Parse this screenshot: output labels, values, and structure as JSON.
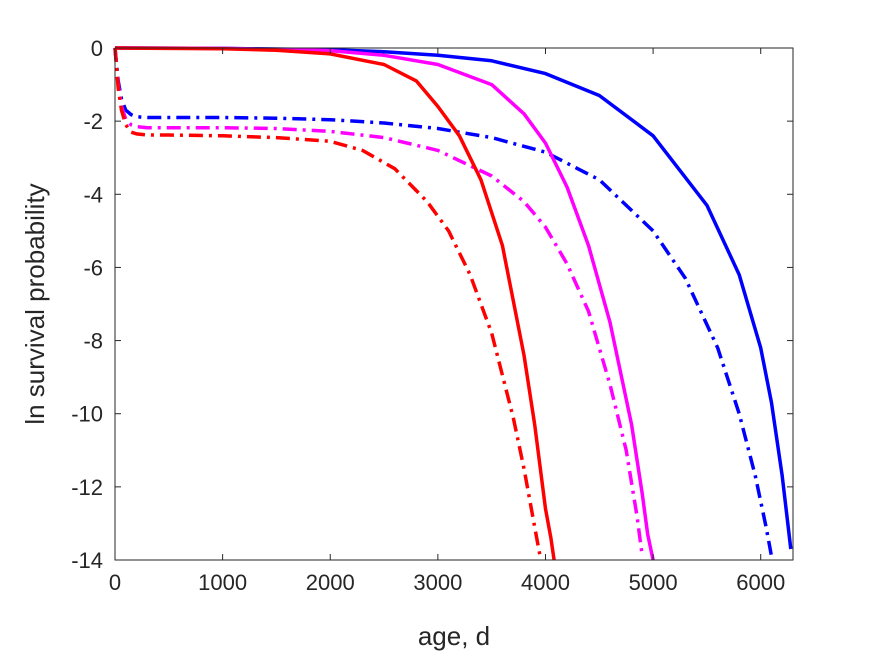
{
  "chart_data": {
    "type": "line",
    "title": "",
    "xlabel": "age, d",
    "ylabel": "ln survival probability",
    "xlim": [
      0,
      6300
    ],
    "ylim": [
      -14,
      0
    ],
    "xticks": [
      0,
      1000,
      2000,
      3000,
      4000,
      5000,
      6000
    ],
    "yticks": [
      0,
      -2,
      -4,
      -6,
      -8,
      -10,
      -12,
      -14
    ],
    "xtick_labels": [
      "0",
      "1000",
      "2000",
      "3000",
      "4000",
      "5000",
      "6000"
    ],
    "ytick_labels": [
      "0",
      "-2",
      "-4",
      "-6",
      "-8",
      "-10",
      "-12",
      "-14"
    ],
    "grid": false,
    "legend": "none",
    "series": [
      {
        "color": "#0000ff",
        "style": "solid",
        "x": [
          0,
          1000,
          2000,
          2500,
          3000,
          3500,
          4000,
          4500,
          5000,
          5500,
          5800,
          6000,
          6100,
          6200,
          6280
        ],
        "y": [
          0,
          -0.01,
          -0.05,
          -0.1,
          -0.2,
          -0.35,
          -0.7,
          -1.3,
          -2.4,
          -4.3,
          -6.2,
          -8.2,
          -9.7,
          -11.7,
          -13.7
        ]
      },
      {
        "color": "#0000ff",
        "style": "dash-dot",
        "x": [
          0,
          30,
          60,
          100,
          150,
          200,
          300,
          500,
          1000,
          1500,
          2000,
          2500,
          3000,
          3500,
          4000,
          4500,
          5000,
          5300,
          5600,
          5800,
          5950,
          6050,
          6100
        ],
        "y": [
          0,
          -0.9,
          -1.4,
          -1.7,
          -1.82,
          -1.88,
          -1.9,
          -1.9,
          -1.9,
          -1.92,
          -1.96,
          -2.05,
          -2.2,
          -2.45,
          -2.85,
          -3.6,
          -5.0,
          -6.3,
          -8.2,
          -10.0,
          -11.7,
          -13.1,
          -13.9
        ]
      },
      {
        "color": "#ff00ff",
        "style": "solid",
        "x": [
          0,
          1000,
          2000,
          2500,
          3000,
          3500,
          3800,
          4000,
          4200,
          4400,
          4600,
          4800,
          4900,
          4950,
          5000
        ],
        "y": [
          0,
          -0.01,
          -0.07,
          -0.2,
          -0.45,
          -1.0,
          -1.8,
          -2.6,
          -3.8,
          -5.4,
          -7.5,
          -10.3,
          -12.2,
          -13.3,
          -14.0
        ]
      },
      {
        "color": "#ff00ff",
        "style": "dash-dot",
        "x": [
          0,
          30,
          60,
          100,
          150,
          200,
          300,
          500,
          1000,
          1500,
          2000,
          2500,
          3000,
          3500,
          3800,
          4000,
          4200,
          4400,
          4600,
          4750,
          4850,
          4900
        ],
        "y": [
          0,
          -1.0,
          -1.6,
          -1.95,
          -2.1,
          -2.15,
          -2.18,
          -2.18,
          -2.18,
          -2.2,
          -2.28,
          -2.45,
          -2.8,
          -3.5,
          -4.2,
          -4.9,
          -5.9,
          -7.2,
          -9.2,
          -11.0,
          -12.8,
          -13.9
        ]
      },
      {
        "color": "#ff0000",
        "style": "solid",
        "x": [
          0,
          1000,
          1500,
          2000,
          2500,
          2800,
          3000,
          3200,
          3400,
          3600,
          3800,
          3900,
          4000,
          4050,
          4080
        ],
        "y": [
          0,
          -0.02,
          -0.06,
          -0.16,
          -0.45,
          -0.9,
          -1.6,
          -2.4,
          -3.6,
          -5.4,
          -8.4,
          -10.3,
          -12.6,
          -13.4,
          -14.0
        ]
      },
      {
        "color": "#ff0000",
        "style": "dash-dot",
        "x": [
          0,
          30,
          60,
          100,
          150,
          200,
          300,
          500,
          1000,
          1500,
          2000,
          2300,
          2600,
          2900,
          3100,
          3300,
          3500,
          3700,
          3800,
          3900,
          3950
        ],
        "y": [
          0,
          -1.1,
          -1.7,
          -2.1,
          -2.3,
          -2.35,
          -2.38,
          -2.38,
          -2.4,
          -2.45,
          -2.55,
          -2.8,
          -3.3,
          -4.2,
          -5.0,
          -6.2,
          -7.8,
          -10.1,
          -11.5,
          -13.1,
          -13.9
        ]
      }
    ]
  }
}
